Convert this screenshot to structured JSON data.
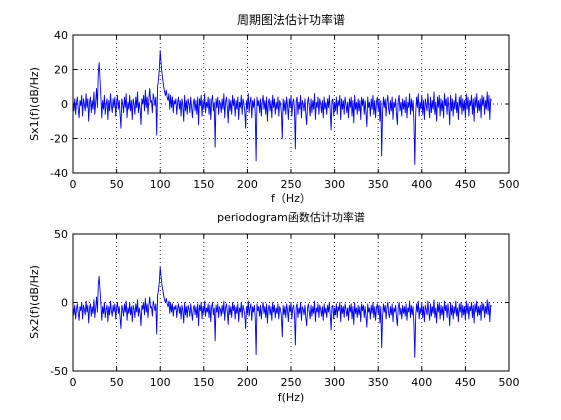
{
  "chart_data": [
    {
      "type": "line",
      "title": "周期图法估计功率谱",
      "xlabel": "f（Hz）",
      "ylabel": "Sx1(f)(dB/Hz)",
      "xlim": [
        0,
        500
      ],
      "ylim": [
        -40,
        40
      ],
      "x_ticks": [
        0,
        50,
        100,
        150,
        200,
        250,
        300,
        350,
        400,
        450,
        500
      ],
      "y_ticks": [
        -40,
        -20,
        0,
        20,
        40
      ],
      "grid": "dotted",
      "line_color": "#0000ff",
      "series": [
        {
          "x_step": 1,
          "x_start": 0,
          "values": [
            2,
            -4,
            3,
            -6,
            1,
            4,
            -3,
            -8,
            2,
            -1,
            5,
            -7,
            3,
            0,
            -4,
            6,
            -2,
            3,
            -10,
            1,
            4,
            -5,
            2,
            -3,
            7,
            -6,
            1,
            9,
            -2,
            18,
            24,
            14,
            4,
            -8,
            2,
            -3,
            5,
            -6,
            0,
            3,
            -9,
            2,
            -4,
            6,
            -1,
            -5,
            3,
            -2,
            4,
            -7,
            1,
            5,
            -3,
            2,
            -6,
            -14,
            3,
            0,
            -5,
            4,
            -2,
            6,
            -8,
            1,
            -3,
            5,
            -4,
            2,
            -9,
            3,
            0,
            -6,
            4,
            -2,
            7,
            -5,
            1,
            -3,
            -12,
            3,
            0,
            5,
            -4,
            8,
            -2,
            4,
            -6,
            3,
            9,
            1,
            2,
            -5,
            6,
            3,
            -1,
            4,
            -18,
            10,
            14,
            20,
            31,
            24,
            18,
            14,
            10,
            7,
            5,
            8,
            4,
            2,
            6,
            -3,
            5,
            -2,
            4,
            -5,
            2,
            0,
            3,
            -6,
            1,
            4,
            -3,
            2,
            -7,
            3,
            -1,
            -10,
            5,
            -4,
            2,
            -6,
            3,
            0,
            -5,
            4,
            -2,
            -8,
            1,
            3,
            -4,
            2,
            -6,
            4,
            -12,
            3,
            -1,
            5,
            -7,
            2,
            -3,
            6,
            -5,
            1,
            -2,
            4,
            -6,
            3,
            -9,
            2,
            5,
            -4,
            1,
            -25,
            3,
            -2,
            4,
            -6,
            2,
            0,
            -5,
            3,
            -3,
            6,
            -8,
            1,
            4,
            -2,
            -11,
            3,
            -4,
            2,
            -6,
            5,
            -1,
            3,
            -7,
            2,
            -3,
            4,
            -9,
            1,
            -2,
            5,
            -6,
            3,
            0,
            -4,
            -14,
            2,
            -3,
            6,
            -5,
            1,
            4,
            -8,
            2,
            -2,
            3,
            -6,
            -33,
            4,
            -1,
            2,
            -5,
            3,
            -7,
            1,
            5,
            -3,
            2,
            -6,
            4,
            -10,
            1,
            3,
            -4,
            2,
            -8,
            5,
            -2,
            3,
            -6,
            1,
            -3,
            4,
            -7,
            2,
            0,
            -5,
            -20,
            3,
            -4,
            2,
            -6,
            4,
            -1,
            -9,
            3,
            -2,
            5,
            -7,
            1,
            3,
            -4,
            -26,
            2,
            4,
            -6,
            1,
            -3,
            5,
            -8,
            2,
            0,
            -4,
            3,
            -6,
            -12,
            1,
            4,
            -2,
            -7,
            3,
            -5,
            2,
            -3,
            6,
            -9,
            1,
            -2,
            4,
            -6,
            3,
            0,
            -5,
            2,
            -8,
            4,
            -3,
            1,
            -6,
            3,
            -2,
            5,
            -4,
            -15,
            2,
            3,
            -7,
            1,
            -4,
            4,
            -6,
            2,
            -1,
            5,
            -9,
            3,
            -3,
            2,
            -6,
            4,
            0,
            -5,
            1,
            -8,
            3,
            -2,
            4,
            -7,
            2,
            -11,
            5,
            -3,
            1,
            -6,
            3,
            -4,
            2,
            -9,
            4,
            -1,
            3,
            -6,
            2,
            -5,
            -13,
            4,
            -2,
            1,
            -7,
            3,
            -3,
            5,
            -6,
            2,
            -8,
            1,
            4,
            -4,
            3,
            -10,
            2,
            -30,
            -5,
            4,
            -2,
            3,
            -7,
            1,
            5,
            -3,
            -6,
            2,
            -4,
            4,
            -9,
            1,
            -2,
            3,
            -6,
            -12,
            2,
            5,
            -4,
            1,
            -7,
            3,
            -3,
            2,
            -5,
            4,
            -8,
            1,
            -2,
            6,
            -6,
            3,
            -4,
            2,
            -11,
            -35,
            -5,
            4,
            -2,
            6,
            -7,
            1,
            -3,
            5,
            -6,
            2,
            -9,
            3,
            0,
            -4,
            6,
            -2,
            -8,
            4,
            -5,
            2,
            -3,
            7,
            -6,
            1,
            -10,
            4,
            -2,
            5,
            -7,
            3,
            -4,
            2,
            -8,
            6,
            -1,
            3,
            -6,
            4,
            -2,
            -12,
            5,
            -4,
            3,
            -7,
            2,
            -3,
            6,
            -5,
            1,
            -9,
            4,
            -2,
            5,
            -6,
            3,
            -4,
            2,
            -8,
            6,
            -3,
            4,
            -7,
            2,
            -1,
            5,
            -6,
            3,
            -10,
            4,
            -2,
            6,
            -5,
            2,
            -4,
            3,
            -8,
            5,
            -1,
            4,
            -6,
            2,
            -3,
            7,
            -4,
            5,
            -9,
            3,
            2
          ]
        }
      ]
    },
    {
      "type": "line",
      "title": "periodogram函数估计功率谱",
      "xlabel": "f(Hz)",
      "ylabel": "Sx2(f)(dB/Hz)",
      "xlim": [
        0,
        500
      ],
      "ylim": [
        -50,
        50
      ],
      "x_ticks": [
        0,
        50,
        100,
        150,
        200,
        250,
        300,
        350,
        400,
        450,
        500
      ],
      "y_ticks": [
        -50,
        0,
        50
      ],
      "grid": "dotted",
      "line_color": "#0000ff",
      "series": [
        {
          "x_step": 1,
          "x_start": 0,
          "values": [
            -3,
            -9,
            -2,
            -12,
            -5,
            -1,
            -8,
            -13,
            -3,
            -6,
            0,
            -12,
            -2,
            -5,
            -9,
            1,
            -7,
            -2,
            -15,
            -4,
            -1,
            -10,
            -3,
            -8,
            2,
            -11,
            -4,
            4,
            -7,
            13,
            19,
            9,
            -1,
            -13,
            -3,
            -8,
            0,
            -11,
            -5,
            -2,
            -14,
            -3,
            -9,
            1,
            -6,
            -10,
            -2,
            -7,
            -1,
            -12,
            -4,
            0,
            -8,
            -3,
            -11,
            -19,
            -2,
            -5,
            -10,
            -1,
            -7,
            1,
            -13,
            -4,
            -8,
            0,
            -9,
            -3,
            -14,
            -2,
            -5,
            -11,
            -1,
            -7,
            2,
            -10,
            -4,
            -8,
            -17,
            -2,
            -5,
            0,
            -9,
            3,
            -7,
            -1,
            -11,
            -2,
            4,
            -4,
            -3,
            -10,
            1,
            -2,
            -6,
            -1,
            -23,
            5,
            9,
            15,
            26,
            19,
            13,
            9,
            5,
            2,
            0,
            3,
            -1,
            -3,
            1,
            -8,
            0,
            -7,
            -1,
            -10,
            -3,
            -5,
            -2,
            -11,
            -4,
            -1,
            -8,
            -3,
            -12,
            -2,
            -6,
            -15,
            0,
            -9,
            -3,
            -11,
            -2,
            -5,
            -10,
            -1,
            -7,
            -13,
            -4,
            -2,
            -9,
            -3,
            -11,
            -1,
            -17,
            -2,
            -6,
            0,
            -12,
            -3,
            -8,
            1,
            -10,
            -4,
            -7,
            -1,
            -11,
            -2,
            -14,
            -3,
            0,
            -9,
            -4,
            -28,
            -2,
            -7,
            -1,
            -11,
            -3,
            -5,
            -10,
            -2,
            -8,
            1,
            -13,
            -4,
            -1,
            -7,
            -16,
            -2,
            -9,
            -3,
            -11,
            0,
            -6,
            -2,
            -12,
            -3,
            -8,
            -1,
            -14,
            -4,
            -7,
            0,
            -11,
            -2,
            -5,
            -9,
            -19,
            -3,
            -8,
            1,
            -10,
            -4,
            -1,
            -13,
            -3,
            -7,
            -2,
            -11,
            -38,
            -1,
            -6,
            -3,
            -10,
            -2,
            -12,
            -4,
            0,
            -8,
            -3,
            -11,
            -1,
            -15,
            -4,
            -2,
            -9,
            -3,
            -13,
            0,
            -7,
            -2,
            -11,
            -4,
            -8,
            -1,
            -12,
            -3,
            -5,
            -10,
            -25,
            -2,
            -9,
            -3,
            -11,
            -1,
            -6,
            -14,
            -2,
            -7,
            0,
            -12,
            -4,
            -2,
            -9,
            -31,
            -3,
            -1,
            -11,
            -4,
            -8,
            0,
            -13,
            -3,
            -5,
            -9,
            -2,
            -11,
            -17,
            -4,
            -1,
            -7,
            -12,
            -2,
            -10,
            -3,
            -8,
            1,
            -14,
            -4,
            -7,
            -1,
            -11,
            -2,
            -5,
            -10,
            -3,
            -13,
            -1,
            -8,
            -4,
            -11,
            -2,
            -7,
            0,
            -9,
            -20,
            -3,
            -2,
            -12,
            -4,
            -9,
            -1,
            -11,
            -3,
            -6,
            0,
            -14,
            -2,
            -8,
            -3,
            -11,
            -1,
            -5,
            -10,
            -4,
            -13,
            -2,
            -7,
            -1,
            -12,
            -3,
            -16,
            0,
            -8,
            -4,
            -11,
            -2,
            -9,
            -3,
            -14,
            -1,
            -6,
            -2,
            -11,
            -3,
            -10,
            -18,
            -1,
            -7,
            -4,
            -12,
            -2,
            -8,
            0,
            -11,
            -3,
            -13,
            -4,
            -1,
            -9,
            -2,
            -15,
            -3,
            -33,
            -10,
            -1,
            -7,
            -2,
            -12,
            -4,
            0,
            -8,
            -11,
            -3,
            -9,
            -1,
            -14,
            -4,
            -7,
            -2,
            -11,
            -17,
            -3,
            0,
            -9,
            -4,
            -12,
            -2,
            -8,
            -3,
            -10,
            -1,
            -13,
            -4,
            -7,
            1,
            -11,
            -2,
            -9,
            -3,
            -16,
            -40,
            -10,
            -1,
            -7,
            1,
            -12,
            -4,
            -8,
            0,
            -11,
            -3,
            -14,
            -2,
            -5,
            -9,
            1,
            -7,
            -13,
            -1,
            -10,
            -3,
            -8,
            2,
            -11,
            -4,
            -15,
            -1,
            -7,
            0,
            -12,
            -2,
            -9,
            -3,
            -13,
            1,
            -6,
            -2,
            -11,
            -1,
            -7,
            -17,
            0,
            -9,
            -2,
            -12,
            -3,
            -8,
            1,
            -10,
            -4,
            -14,
            -1,
            -7,
            0,
            -11,
            -2,
            -9,
            -3,
            -13,
            1,
            -8,
            -1,
            -12,
            -3,
            -6,
            0,
            -11,
            -2,
            -15,
            -1,
            -7,
            1,
            -10,
            -3,
            -9,
            -2,
            -13,
            0,
            -6,
            -1,
            -11,
            -3,
            -8,
            2,
            -9,
            0,
            -14,
            -2,
            -3
          ]
        }
      ]
    }
  ]
}
